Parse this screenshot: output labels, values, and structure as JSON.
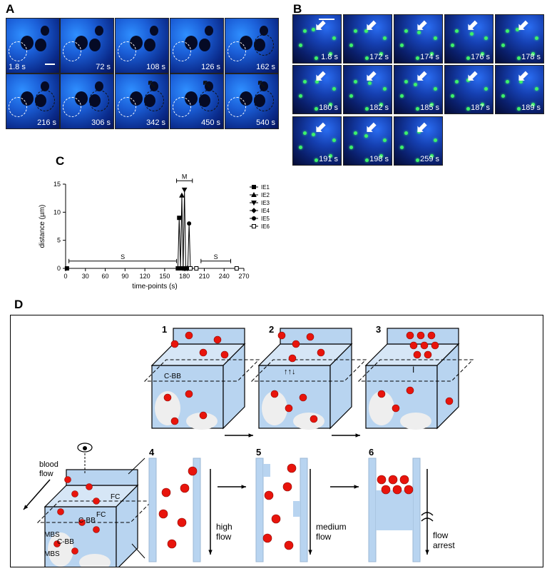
{
  "panels": {
    "a": "A",
    "b": "B",
    "c": "C",
    "d": "D"
  },
  "panel_a": {
    "tiles": [
      {
        "time": "1.8 s"
      },
      {
        "time": "72 s"
      },
      {
        "time": "108 s"
      },
      {
        "time": "126 s"
      },
      {
        "time": "162 s"
      },
      {
        "time": "216 s"
      },
      {
        "time": "306 s"
      },
      {
        "time": "342 s"
      },
      {
        "time": "450 s"
      },
      {
        "time": "540 s"
      }
    ]
  },
  "panel_b": {
    "tiles": [
      {
        "time": "1.8 s"
      },
      {
        "time": "172 s"
      },
      {
        "time": "174 s"
      },
      {
        "time": "176 s"
      },
      {
        "time": "178 s"
      },
      {
        "time": "180 s"
      },
      {
        "time": "182 s"
      },
      {
        "time": "185 s"
      },
      {
        "time": "187 s"
      },
      {
        "time": "189 s"
      },
      {
        "time": "191 s"
      },
      {
        "time": "198 s"
      },
      {
        "time": "259 s"
      }
    ]
  },
  "chart_data": {
    "type": "line",
    "xlabel": "time-points (s)",
    "ylabel": "distance (µm)",
    "xlim": [
      0,
      270
    ],
    "ylim": [
      0,
      15
    ],
    "xticks": [
      0,
      30,
      60,
      90,
      120,
      150,
      180,
      210,
      240,
      270
    ],
    "yticks": [
      0,
      5,
      10,
      15
    ],
    "series": [
      {
        "name": "IE1",
        "marker": "square",
        "points": [
          [
            2,
            0
          ],
          [
            170,
            0
          ],
          [
            172,
            9
          ],
          [
            174,
            0
          ]
        ]
      },
      {
        "name": "IE2",
        "marker": "triangle-up",
        "points": [
          [
            174,
            0
          ],
          [
            176,
            13
          ],
          [
            178,
            0
          ]
        ]
      },
      {
        "name": "IE3",
        "marker": "triangle-down",
        "points": [
          [
            178,
            0
          ],
          [
            180,
            14
          ],
          [
            182,
            0
          ]
        ]
      },
      {
        "name": "IE4",
        "marker": "diamond",
        "points": [
          [
            182,
            0
          ],
          [
            184,
            0
          ],
          [
            185,
            0
          ]
        ]
      },
      {
        "name": "IE5",
        "marker": "circle",
        "points": [
          [
            185,
            0
          ],
          [
            187,
            8
          ],
          [
            189,
            0
          ]
        ]
      },
      {
        "name": "IE6",
        "marker": "open-square",
        "points": [
          [
            189,
            0
          ],
          [
            198,
            0
          ],
          [
            259,
            0
          ]
        ]
      }
    ],
    "annotations": [
      {
        "label": "S",
        "x_from": 5,
        "x_to": 168,
        "y": 1.3
      },
      {
        "label": "M",
        "x_from": 168,
        "x_to": 192,
        "y": 15.6
      },
      {
        "label": "S",
        "x_from": 205,
        "x_to": 250,
        "y": 1.3
      }
    ]
  },
  "panel_d": {
    "steps": [
      {
        "num": "1"
      },
      {
        "num": "2"
      },
      {
        "num": "3"
      },
      {
        "num": "4"
      },
      {
        "num": "5"
      },
      {
        "num": "6"
      }
    ],
    "labels": {
      "cbb": "C-BB",
      "blood_flow_1": "blood",
      "blood_flow_2": "flow",
      "fc": "FC",
      "mbs": "MBS",
      "high_flow_1": "high",
      "high_flow_2": "flow",
      "medium_flow_1": "medium",
      "medium_flow_2": "flow",
      "flow_arrest_1": "flow",
      "flow_arrest_2": "arrest"
    },
    "colors": {
      "rbc": "#e8140c",
      "channel": "#b8d4f0"
    }
  }
}
